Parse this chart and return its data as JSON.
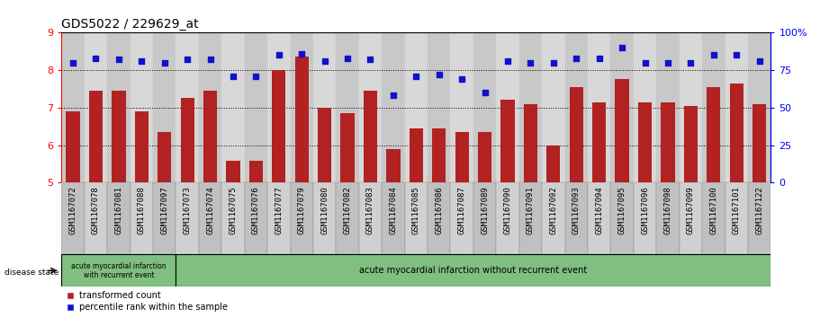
{
  "title": "GDS5022 / 229629_at",
  "categories": [
    "GSM1167072",
    "GSM1167078",
    "GSM1167081",
    "GSM1167088",
    "GSM1167097",
    "GSM1167073",
    "GSM1167074",
    "GSM1167075",
    "GSM1167076",
    "GSM1167077",
    "GSM1167079",
    "GSM1167080",
    "GSM1167082",
    "GSM1167083",
    "GSM1167084",
    "GSM1167085",
    "GSM1167086",
    "GSM1167087",
    "GSM1167089",
    "GSM1167090",
    "GSM1167091",
    "GSM1167092",
    "GSM1167093",
    "GSM1167094",
    "GSM1167095",
    "GSM1167096",
    "GSM1167098",
    "GSM1167099",
    "GSM1167100",
    "GSM1167101",
    "GSM1167122"
  ],
  "bar_values": [
    6.9,
    7.45,
    7.45,
    6.9,
    6.35,
    7.25,
    7.45,
    5.57,
    5.57,
    8.0,
    8.35,
    7.0,
    6.85,
    7.45,
    5.9,
    6.45,
    6.45,
    6.35,
    6.35,
    7.2,
    7.1,
    6.0,
    7.55,
    7.15,
    7.75,
    7.15,
    7.15,
    7.05,
    7.55,
    7.65,
    7.1
  ],
  "percentile_values": [
    80,
    83,
    82,
    81,
    80,
    82,
    82,
    71,
    71,
    85,
    86,
    81,
    83,
    82,
    58,
    71,
    72,
    69,
    60,
    81,
    80,
    80,
    83,
    83,
    90,
    80,
    80,
    80,
    85,
    85,
    81
  ],
  "group1_count": 5,
  "group2_count": 26,
  "group1_label": "acute myocardial infarction\nwith recurrent event",
  "group2_label": "acute myocardial infarction without recurrent event",
  "group_color": "#7FBF7F",
  "bar_color": "#B22222",
  "dot_color": "#1111CC",
  "ylim_left": [
    5,
    9
  ],
  "ylim_right": [
    0,
    100
  ],
  "yticks_left": [
    5,
    6,
    7,
    8,
    9
  ],
  "yticks_right": [
    0,
    25,
    50,
    75,
    100
  ],
  "title_fontsize": 10,
  "tick_fontsize": 6.5,
  "disease_state_label": "disease state",
  "legend_label_bar": "transformed count",
  "legend_label_dot": "percentile rank within the sample",
  "bar_color_legend": "#B22222",
  "dot_color_legend": "#1111CC"
}
